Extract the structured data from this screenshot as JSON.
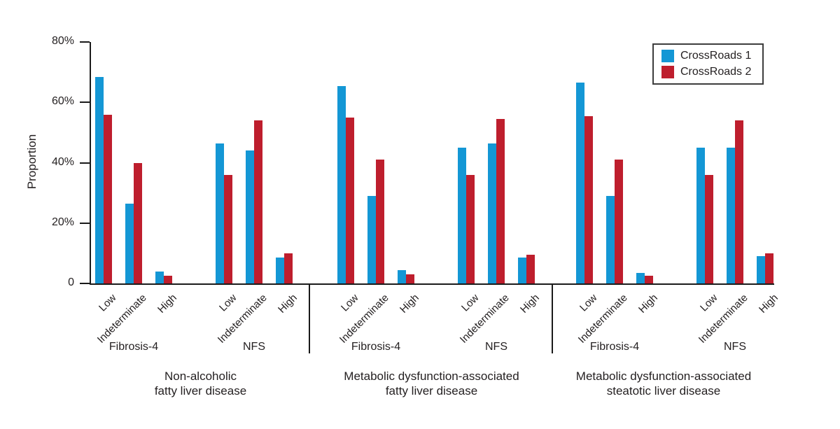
{
  "chart_data": {
    "type": "bar",
    "title": "",
    "ylabel": "Proportion",
    "ylim": [
      0,
      80
    ],
    "yticks": [
      80,
      60,
      40,
      20,
      0
    ],
    "ytick_labels": [
      "80%",
      "60%",
      "40%",
      "20%",
      "0"
    ],
    "grid": false,
    "legend_position": "top-right",
    "categories": [
      "Low",
      "Indeterminate",
      "High"
    ],
    "series_names": [
      "CrossRoads 1",
      "CrossRoads 2"
    ],
    "colors": {
      "CrossRoads 1": "#1497d5",
      "CrossRoads 2": "#be1e2d",
      "axis": "#1a1a1a"
    },
    "panels": [
      {
        "title_lines": [
          "Non-alcoholic",
          "fatty liver disease"
        ],
        "subgroups": [
          {
            "label": "Fibrosis-4",
            "series": [
              {
                "name": "CrossRoads 1",
                "values": [
                  68.5,
                  26.5,
                  4
                ]
              },
              {
                "name": "CrossRoads 2",
                "values": [
                  56,
                  40,
                  2.5
                ]
              }
            ]
          },
          {
            "label": "NFS",
            "series": [
              {
                "name": "CrossRoads 1",
                "values": [
                  46.5,
                  44,
                  8.5
                ]
              },
              {
                "name": "CrossRoads 2",
                "values": [
                  36,
                  54,
                  10
                ]
              }
            ]
          }
        ]
      },
      {
        "title_lines": [
          "Metabolic dysfunction-associated",
          "fatty liver disease"
        ],
        "subgroups": [
          {
            "label": "Fibrosis-4",
            "series": [
              {
                "name": "CrossRoads 1",
                "values": [
                  65.5,
                  29,
                  4.5
                ]
              },
              {
                "name": "CrossRoads 2",
                "values": [
                  55,
                  41,
                  3
                ]
              }
            ]
          },
          {
            "label": "NFS",
            "series": [
              {
                "name": "CrossRoads 1",
                "values": [
                  45,
                  46.5,
                  8.5
                ]
              },
              {
                "name": "CrossRoads 2",
                "values": [
                  36,
                  54.5,
                  9.5
                ]
              }
            ]
          }
        ]
      },
      {
        "title_lines": [
          "Metabolic dysfunction-associated",
          "steatotic liver disease"
        ],
        "subgroups": [
          {
            "label": "Fibrosis-4",
            "series": [
              {
                "name": "CrossRoads 1",
                "values": [
                  66.5,
                  29,
                  3.5
                ]
              },
              {
                "name": "CrossRoads 2",
                "values": [
                  55.5,
                  41,
                  2.5
                ]
              }
            ]
          },
          {
            "label": "NFS",
            "series": [
              {
                "name": "CrossRoads 1",
                "values": [
                  45,
                  45,
                  9
                ]
              },
              {
                "name": "CrossRoads 2",
                "values": [
                  36,
                  54,
                  10
                ]
              }
            ]
          }
        ]
      }
    ],
    "legend": [
      {
        "label": "CrossRoads 1",
        "color": "#1497d5"
      },
      {
        "label": "CrossRoads 2",
        "color": "#be1e2d"
      }
    ]
  }
}
